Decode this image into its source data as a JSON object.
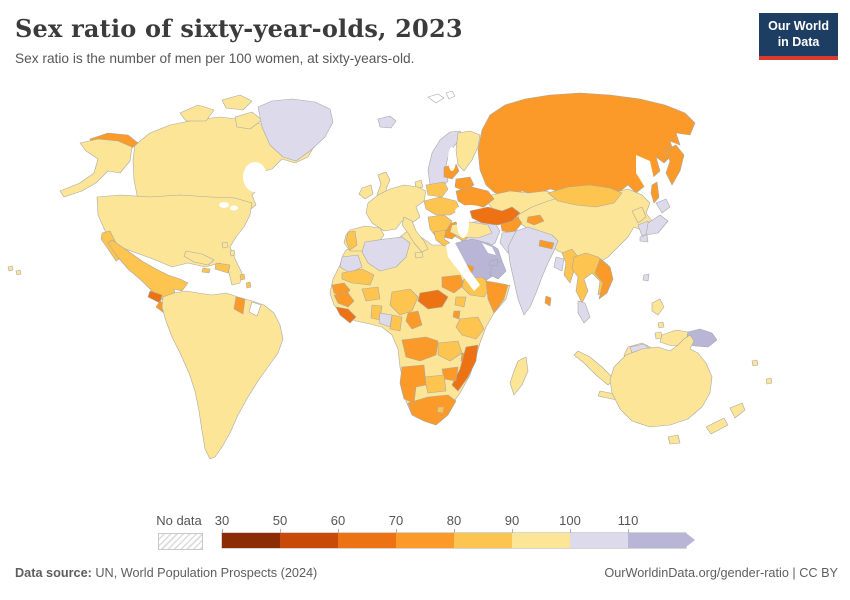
{
  "header": {
    "title": "Sex ratio of sixty-year-olds, 2023",
    "subtitle": "Sex ratio is the number of men per 100 women, at sixty-years-old."
  },
  "logo": {
    "line1": "Our World",
    "line2": "in Data",
    "bg_color": "#1D3D63",
    "accent_color": "#DC3A2E"
  },
  "legend": {
    "no_data_label": "No data"
  },
  "footer": {
    "source_label": "Data source:",
    "source_text": " UN, World Population Prospects (2024)",
    "right_text": "OurWorldinData.org/gender-ratio | CC BY"
  },
  "chart_data": {
    "type": "heatmap",
    "subtype": "choropleth-world-map",
    "title": "Sex ratio of sixty-year-olds, 2023",
    "unit": "men per 100 women at age sixty",
    "year": "2023",
    "palette": {
      "30-50": "#8B2C04",
      "50-60": "#C94A08",
      "60-70": "#ED7214",
      "70-80": "#FB9A29",
      "80-90": "#FDC44F",
      "90-100": "#FCE596",
      "100-110": "#DDDAEB",
      "110+": "#B9B5D6",
      "no-data": "#FFFFFF"
    },
    "legend": {
      "no_data": "No data",
      "ticks": [
        "30",
        "50",
        "60",
        "70",
        "80",
        "90",
        "100",
        "110"
      ],
      "bins": [
        {
          "tick": "30",
          "bin": "30-50"
        },
        {
          "tick": "50",
          "bin": "50-60"
        },
        {
          "tick": "60",
          "bin": "60-70"
        },
        {
          "tick": "70",
          "bin": "70-80"
        },
        {
          "tick": "80",
          "bin": "80-90"
        },
        {
          "tick": "90",
          "bin": "90-100"
        },
        {
          "tick": "100",
          "bin": "100-110"
        },
        {
          "tick": "110",
          "bin": "110+"
        }
      ]
    },
    "regions": [
      {
        "id": "canada",
        "name": "Canada",
        "bin": "90-100"
      },
      {
        "id": "united-states",
        "name": "United States",
        "bin": "90-100"
      },
      {
        "id": "greenland",
        "name": "Greenland",
        "bin": "100-110"
      },
      {
        "id": "mexico",
        "name": "Mexico",
        "bin": "80-90"
      },
      {
        "id": "guatemala",
        "name": "Guatemala",
        "bin": "60-70"
      },
      {
        "id": "central-america",
        "name": "Central America (Honduras, Nicaragua, Costa Rica, Panama)",
        "bin": "70-80"
      },
      {
        "id": "cuba",
        "name": "Cuba",
        "bin": "90-100"
      },
      {
        "id": "hispaniola",
        "name": "Haiti / Dominican Republic",
        "bin": "80-90"
      },
      {
        "id": "jamaica",
        "name": "Jamaica",
        "bin": "80-90"
      },
      {
        "id": "bahamas",
        "name": "Bahamas",
        "bin": "90-100"
      },
      {
        "id": "lesser-antilles",
        "name": "Lesser Antilles",
        "bin": "80-90"
      },
      {
        "id": "south-america",
        "name": "South America (Brazil, Argentina, Colombia, Peru, Chile, Venezuela, Bolivia)",
        "bin": "90-100"
      },
      {
        "id": "guyana",
        "name": "Guyana",
        "bin": "70-80"
      },
      {
        "id": "french-guiana",
        "name": "French Guiana",
        "bin": "no-data"
      },
      {
        "id": "iceland",
        "name": "Iceland",
        "bin": "100-110"
      },
      {
        "id": "uk",
        "name": "United Kingdom",
        "bin": "90-100"
      },
      {
        "id": "ireland",
        "name": "Ireland",
        "bin": "90-100"
      },
      {
        "id": "scandinavia",
        "name": "Norway / Sweden",
        "bin": "100-110"
      },
      {
        "id": "denmark",
        "name": "Denmark",
        "bin": "90-100"
      },
      {
        "id": "finland",
        "name": "Finland",
        "bin": "90-100"
      },
      {
        "id": "western-europe",
        "name": "Western Europe (France, Germany, Benelux, Switzerland, Austria)",
        "bin": "90-100"
      },
      {
        "id": "iberia",
        "name": "Spain",
        "bin": "90-100"
      },
      {
        "id": "portugal",
        "name": "Portugal",
        "bin": "80-90"
      },
      {
        "id": "italy",
        "name": "Italy",
        "bin": "90-100"
      },
      {
        "id": "central-east-europe",
        "name": "Czechia / Hungary / Romania",
        "bin": "80-90"
      },
      {
        "id": "balkans",
        "name": "Balkans (Serbia, Bulgaria, Albania)",
        "bin": "80-90"
      },
      {
        "id": "greece",
        "name": "Greece",
        "bin": "80-90"
      },
      {
        "id": "poland",
        "name": "Poland",
        "bin": "80-90"
      },
      {
        "id": "baltics",
        "name": "Baltic states (Estonia, Latvia, Lithuania)",
        "bin": "70-80"
      },
      {
        "id": "belarus",
        "name": "Belarus",
        "bin": "70-80"
      },
      {
        "id": "ukraine",
        "name": "Ukraine",
        "bin": "70-80"
      },
      {
        "id": "russia",
        "name": "Russia",
        "bin": "70-80"
      },
      {
        "id": "kazakhstan",
        "name": "Kazakhstan",
        "bin": "90-100"
      },
      {
        "id": "turkmenistan-uzbekistan",
        "name": "Turkmenistan / Uzbekistan",
        "bin": "60-70"
      },
      {
        "id": "kyrgyzstan-tajikistan",
        "name": "Kyrgyzstan / Tajikistan",
        "bin": "70-80"
      },
      {
        "id": "caucasus",
        "name": "Caucasus (Georgia, Armenia, Azerbaijan)",
        "bin": "80-90"
      },
      {
        "id": "turkey",
        "name": "Turkey",
        "bin": "90-100"
      },
      {
        "id": "syria",
        "name": "Syria / Jordan",
        "bin": "70-80"
      },
      {
        "id": "iraq",
        "name": "Iraq",
        "bin": "80-90"
      },
      {
        "id": "saudi-arabia",
        "name": "Saudi Arabia",
        "bin": "110+"
      },
      {
        "id": "yemen",
        "name": "Yemen",
        "bin": "80-90"
      },
      {
        "id": "oman",
        "name": "Oman",
        "bin": "110+"
      },
      {
        "id": "uae",
        "name": "United Arab Emirates",
        "bin": "110+"
      },
      {
        "id": "iran",
        "name": "Iran",
        "bin": "100-110"
      },
      {
        "id": "afghanistan",
        "name": "Afghanistan",
        "bin": "70-80"
      },
      {
        "id": "pakistan",
        "name": "Pakistan",
        "bin": "100-110"
      },
      {
        "id": "india",
        "name": "India",
        "bin": "100-110"
      },
      {
        "id": "nepal",
        "name": "Nepal",
        "bin": "70-80"
      },
      {
        "id": "bangladesh",
        "name": "Bangladesh",
        "bin": "100-110"
      },
      {
        "id": "sri-lanka",
        "name": "Sri Lanka",
        "bin": "70-80"
      },
      {
        "id": "china",
        "name": "China",
        "bin": "90-100"
      },
      {
        "id": "mongolia",
        "name": "Mongolia",
        "bin": "80-90"
      },
      {
        "id": "north-korea",
        "name": "North Korea",
        "bin": "90-100"
      },
      {
        "id": "south-korea",
        "name": "South Korea",
        "bin": "100-110"
      },
      {
        "id": "japan",
        "name": "Japan",
        "bin": "100-110"
      },
      {
        "id": "taiwan",
        "name": "Taiwan",
        "bin": "100-110"
      },
      {
        "id": "myanmar",
        "name": "Myanmar",
        "bin": "80-90"
      },
      {
        "id": "indochina",
        "name": "Thailand / Laos / Cambodia",
        "bin": "80-90"
      },
      {
        "id": "vietnam",
        "name": "Vietnam",
        "bin": "70-80"
      },
      {
        "id": "malaysia",
        "name": "Malaysia",
        "bin": "100-110"
      },
      {
        "id": "indonesia",
        "name": "Indonesia",
        "bin": "90-100"
      },
      {
        "id": "philippines",
        "name": "Philippines",
        "bin": "90-100"
      },
      {
        "id": "papua-new-guinea",
        "name": "Papua New Guinea",
        "bin": "110+"
      },
      {
        "id": "australia",
        "name": "Australia",
        "bin": "90-100"
      },
      {
        "id": "new-zealand",
        "name": "New Zealand",
        "bin": "90-100"
      },
      {
        "id": "pacific-islands",
        "name": "Pacific islands",
        "bin": "90-100"
      },
      {
        "id": "africa-sahel",
        "name": "Northern & Central Africa (Morocco, Libya, Egypt, Mali, Niger, Chad, Sudan, DR Congo, Kenya)",
        "bin": "90-100"
      },
      {
        "id": "algeria",
        "name": "Algeria",
        "bin": "100-110"
      },
      {
        "id": "western-sahara",
        "name": "Western Sahara",
        "bin": "100-110"
      },
      {
        "id": "mauritania",
        "name": "Mauritania",
        "bin": "80-90"
      },
      {
        "id": "senegal",
        "name": "Senegal / Gambia",
        "bin": "70-80"
      },
      {
        "id": "guinea",
        "name": "Guinea",
        "bin": "70-80"
      },
      {
        "id": "sierra-leone-liberia",
        "name": "Sierra Leone / Liberia",
        "bin": "60-70"
      },
      {
        "id": "ghana",
        "name": "Ghana",
        "bin": "80-90"
      },
      {
        "id": "burkina-faso",
        "name": "Burkina Faso",
        "bin": "80-90"
      },
      {
        "id": "nigeria",
        "name": "Nigeria",
        "bin": "80-90"
      },
      {
        "id": "cameroon",
        "name": "Cameroon",
        "bin": "70-80"
      },
      {
        "id": "central-african-republic",
        "name": "Central African Republic",
        "bin": "60-70"
      },
      {
        "id": "south-sudan",
        "name": "South Sudan",
        "bin": "70-80"
      },
      {
        "id": "eritrea",
        "name": "Eritrea",
        "bin": "70-80"
      },
      {
        "id": "ethiopia",
        "name": "Ethiopia",
        "bin": "80-90"
      },
      {
        "id": "somalia",
        "name": "Somalia",
        "bin": "70-80"
      },
      {
        "id": "uganda",
        "name": "Uganda",
        "bin": "80-90"
      },
      {
        "id": "rwanda-burundi",
        "name": "Rwanda / Burundi",
        "bin": "70-80"
      },
      {
        "id": "gabon",
        "name": "Gabon",
        "bin": "100-110"
      },
      {
        "id": "congo",
        "name": "Congo",
        "bin": "80-90"
      },
      {
        "id": "angola",
        "name": "Angola",
        "bin": "70-80"
      },
      {
        "id": "zambia",
        "name": "Zambia",
        "bin": "80-90"
      },
      {
        "id": "malawi",
        "name": "Malawi",
        "bin": "70-80"
      },
      {
        "id": "mozambique",
        "name": "Mozambique",
        "bin": "60-70"
      },
      {
        "id": "zimbabwe",
        "name": "Zimbabwe",
        "bin": "70-80"
      },
      {
        "id": "botswana",
        "name": "Botswana",
        "bin": "80-90"
      },
      {
        "id": "namibia",
        "name": "Namibia",
        "bin": "70-80"
      },
      {
        "id": "south-africa",
        "name": "South Africa",
        "bin": "70-80"
      },
      {
        "id": "lesotho",
        "name": "Lesotho",
        "bin": "80-90"
      },
      {
        "id": "tanzania",
        "name": "Tanzania",
        "bin": "80-90"
      },
      {
        "id": "madagascar",
        "name": "Madagascar",
        "bin": "90-100"
      },
      {
        "id": "svalbard",
        "name": "Svalbard",
        "bin": "no-data"
      },
      {
        "id": "hawaii",
        "name": "Hawaii (United States)",
        "bin": "90-100"
      }
    ]
  }
}
